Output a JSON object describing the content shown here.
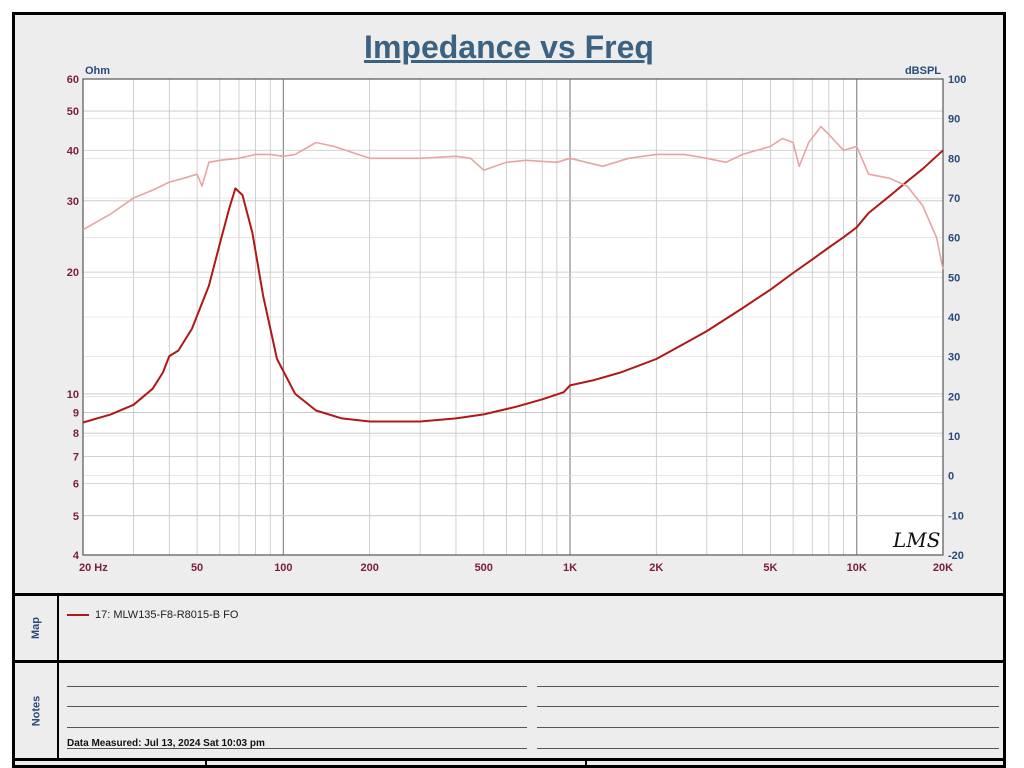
{
  "chart_data": {
    "type": "line",
    "title": "Impedance vs Freq",
    "x_axis": {
      "scale": "log",
      "range": [
        20,
        20000
      ],
      "tick_labels": [
        {
          "value": 20,
          "label": "20  Hz"
        },
        {
          "value": 50,
          "label": "50"
        },
        {
          "value": 100,
          "label": "100"
        },
        {
          "value": 200,
          "label": "200"
        },
        {
          "value": 500,
          "label": "500"
        },
        {
          "value": 1000,
          "label": "1K"
        },
        {
          "value": 2000,
          "label": "2K"
        },
        {
          "value": 5000,
          "label": "5K"
        },
        {
          "value": 10000,
          "label": "10K"
        },
        {
          "value": 20000,
          "label": "20K"
        }
      ]
    },
    "y_left": {
      "label": "Ohm",
      "scale": "log",
      "range": [
        4,
        60
      ],
      "tick_labels": [
        {
          "value": 60,
          "label": "60"
        },
        {
          "value": 50,
          "label": "50"
        },
        {
          "value": 40,
          "label": "40"
        },
        {
          "value": 30,
          "label": "30"
        },
        {
          "value": 20,
          "label": "20"
        },
        {
          "value": 10,
          "label": "10"
        },
        {
          "value": 9,
          "label": "9"
        },
        {
          "value": 8,
          "label": "8"
        },
        {
          "value": 7,
          "label": "7"
        },
        {
          "value": 6,
          "label": "6"
        },
        {
          "value": 5,
          "label": "5"
        },
        {
          "value": 4,
          "label": "4"
        }
      ]
    },
    "y_right": {
      "label": "dBSPL",
      "scale": "linear",
      "range": [
        -20,
        100
      ],
      "tick_labels": [
        {
          "value": 100,
          "label": "100"
        },
        {
          "value": 90,
          "label": "90"
        },
        {
          "value": 80,
          "label": "80"
        },
        {
          "value": 70,
          "label": "70"
        },
        {
          "value": 60,
          "label": "60"
        },
        {
          "value": 50,
          "label": "50"
        },
        {
          "value": 40,
          "label": "40"
        },
        {
          "value": 30,
          "label": "30"
        },
        {
          "value": 20,
          "label": "20"
        },
        {
          "value": 10,
          "label": "10"
        },
        {
          "value": 0,
          "label": "0"
        },
        {
          "value": -10,
          "label": "-10"
        },
        {
          "value": -20,
          "label": "-20"
        }
      ]
    },
    "grid": true,
    "series": [
      {
        "name": "17: MLW135-F8-R8015-B  FO",
        "axis": "left",
        "color": "#b01818",
        "points": [
          [
            20,
            8.5
          ],
          [
            25,
            8.9
          ],
          [
            30,
            9.4
          ],
          [
            35,
            10.3
          ],
          [
            38,
            11.3
          ],
          [
            40,
            12.4
          ],
          [
            43,
            12.8
          ],
          [
            48,
            14.5
          ],
          [
            55,
            18.5
          ],
          [
            60,
            23.5
          ],
          [
            65,
            29
          ],
          [
            68,
            32.2
          ],
          [
            72,
            31
          ],
          [
            78,
            25
          ],
          [
            85,
            17.5
          ],
          [
            95,
            12.2
          ],
          [
            110,
            10
          ],
          [
            130,
            9.1
          ],
          [
            160,
            8.7
          ],
          [
            200,
            8.55
          ],
          [
            300,
            8.55
          ],
          [
            400,
            8.7
          ],
          [
            500,
            8.9
          ],
          [
            650,
            9.3
          ],
          [
            800,
            9.7
          ],
          [
            950,
            10.1
          ],
          [
            1000,
            10.5
          ],
          [
            1200,
            10.8
          ],
          [
            1500,
            11.3
          ],
          [
            2000,
            12.2
          ],
          [
            2500,
            13.3
          ],
          [
            3000,
            14.3
          ],
          [
            4000,
            16.3
          ],
          [
            5000,
            18.1
          ],
          [
            6000,
            19.9
          ],
          [
            7000,
            21.5
          ],
          [
            8000,
            23
          ],
          [
            9000,
            24.4
          ],
          [
            10000,
            25.8
          ],
          [
            11000,
            28
          ],
          [
            13000,
            30.8
          ],
          [
            15000,
            33.5
          ],
          [
            17000,
            36
          ],
          [
            20000,
            40
          ]
        ]
      },
      {
        "name": "",
        "axis": "right",
        "color": "#e8a4a4",
        "points": [
          [
            20,
            62
          ],
          [
            25,
            66
          ],
          [
            30,
            70
          ],
          [
            35,
            72
          ],
          [
            40,
            74
          ],
          [
            45,
            75
          ],
          [
            50,
            76
          ],
          [
            52,
            73
          ],
          [
            55,
            79
          ],
          [
            60,
            79.5
          ],
          [
            70,
            80
          ],
          [
            80,
            81
          ],
          [
            90,
            81
          ],
          [
            100,
            80.5
          ],
          [
            110,
            81
          ],
          [
            130,
            84
          ],
          [
            150,
            83
          ],
          [
            200,
            80
          ],
          [
            300,
            80
          ],
          [
            400,
            80.5
          ],
          [
            450,
            80
          ],
          [
            500,
            77
          ],
          [
            600,
            79
          ],
          [
            700,
            79.5
          ],
          [
            900,
            79
          ],
          [
            1000,
            80
          ],
          [
            1300,
            78
          ],
          [
            1600,
            80
          ],
          [
            2000,
            81
          ],
          [
            2500,
            81
          ],
          [
            3000,
            80
          ],
          [
            3500,
            79
          ],
          [
            4000,
            81
          ],
          [
            5000,
            83
          ],
          [
            5500,
            85
          ],
          [
            6000,
            84
          ],
          [
            6300,
            78
          ],
          [
            6800,
            84
          ],
          [
            7500,
            88
          ],
          [
            8000,
            86
          ],
          [
            9000,
            82
          ],
          [
            10000,
            83
          ],
          [
            11000,
            76
          ],
          [
            13000,
            75
          ],
          [
            15000,
            73
          ],
          [
            17000,
            68
          ],
          [
            19000,
            60
          ],
          [
            20000,
            52
          ]
        ]
      }
    ]
  },
  "watermark_text": "LMS",
  "map": {
    "label": "Map",
    "legend_label": "17: MLW135-F8-R8015-B  FO"
  },
  "notes": {
    "label": "Notes",
    "date_measured": "Data Measured: Jul 13, 2024  Sat 10:03 pm"
  }
}
